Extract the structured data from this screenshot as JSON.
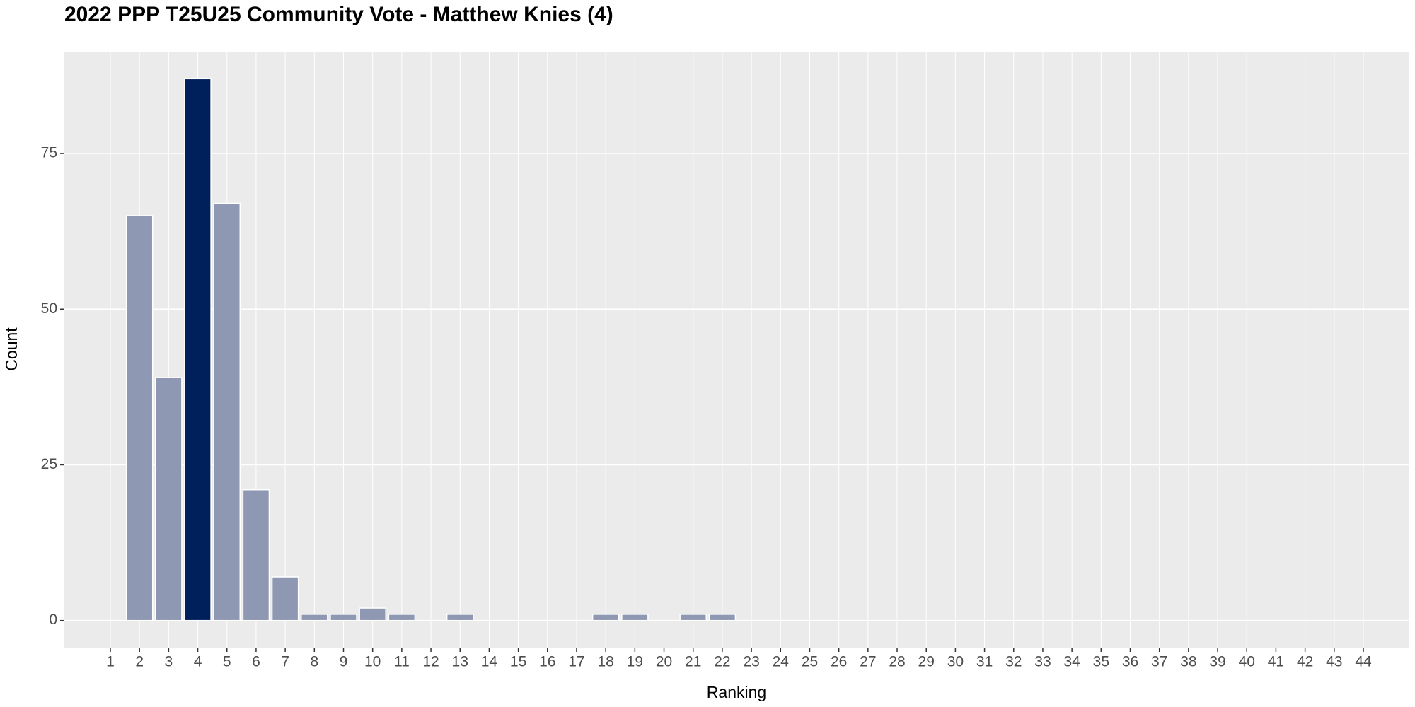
{
  "chart_data": {
    "type": "bar",
    "title": "2022 PPP T25U25 Community Vote - Matthew Knies (4)",
    "x_label": "Ranking",
    "y_label": "Count",
    "categories": [
      1,
      2,
      3,
      4,
      5,
      6,
      7,
      8,
      9,
      10,
      11,
      12,
      13,
      14,
      15,
      16,
      17,
      18,
      19,
      20,
      21,
      22,
      23,
      24,
      25,
      26,
      27,
      28,
      29,
      30,
      31,
      32,
      33,
      34,
      35,
      36,
      37,
      38,
      39,
      40,
      41,
      42,
      43,
      44
    ],
    "values": [
      0,
      65,
      39,
      87,
      67,
      21,
      7,
      1,
      1,
      2,
      1,
      0,
      1,
      0,
      0,
      0,
      0,
      1,
      1,
      0,
      1,
      1,
      0,
      0,
      0,
      0,
      0,
      0,
      0,
      0,
      0,
      0,
      0,
      0,
      0,
      0,
      0,
      0,
      0,
      0,
      0,
      0,
      0,
      0
    ],
    "color": "#8e98b2",
    "highlight_color": "#00205b",
    "highlight_category": 4,
    "ylim": [
      -4.35,
      91.35
    ],
    "yticks": [
      0,
      25,
      50,
      75
    ],
    "grid": true
  }
}
